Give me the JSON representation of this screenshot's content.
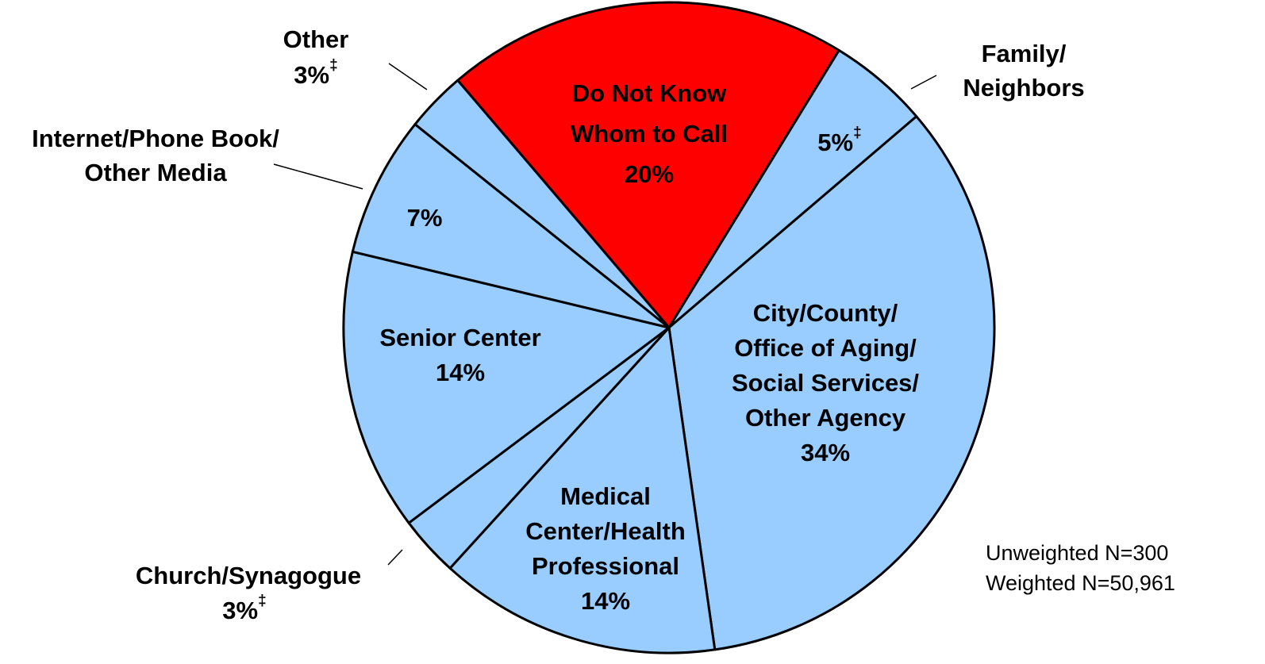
{
  "chart_data": {
    "type": "pie",
    "categories": [
      [
        "Do Not Know",
        "Whom to Call"
      ],
      [
        "Family/",
        "Neighbors"
      ],
      [
        "City/County/",
        "Office of Aging/",
        "Social Services/",
        "Other Agency"
      ],
      [
        "Medical",
        "Center/Health",
        "Professional"
      ],
      [
        "Church/Synagogue"
      ],
      [
        "Senior Center"
      ],
      [
        "Internet/Phone Book/",
        "Other Media"
      ],
      [
        "Other"
      ]
    ],
    "values": [
      20,
      5,
      34,
      14,
      3,
      14,
      7,
      3
    ],
    "value_labels": [
      "20%",
      "5%",
      "34%",
      "14%",
      "3%",
      "14%",
      "7%",
      "3%"
    ],
    "markers": [
      null,
      "‡",
      null,
      null,
      "‡",
      null,
      null,
      "‡"
    ],
    "colors": [
      "#ff0000",
      "#99ccff",
      "#99ccff",
      "#99ccff",
      "#99ccff",
      "#99ccff",
      "#99ccff",
      "#99ccff"
    ],
    "notes": [
      "Unweighted N=300",
      "Weighted N=50,961"
    ]
  }
}
